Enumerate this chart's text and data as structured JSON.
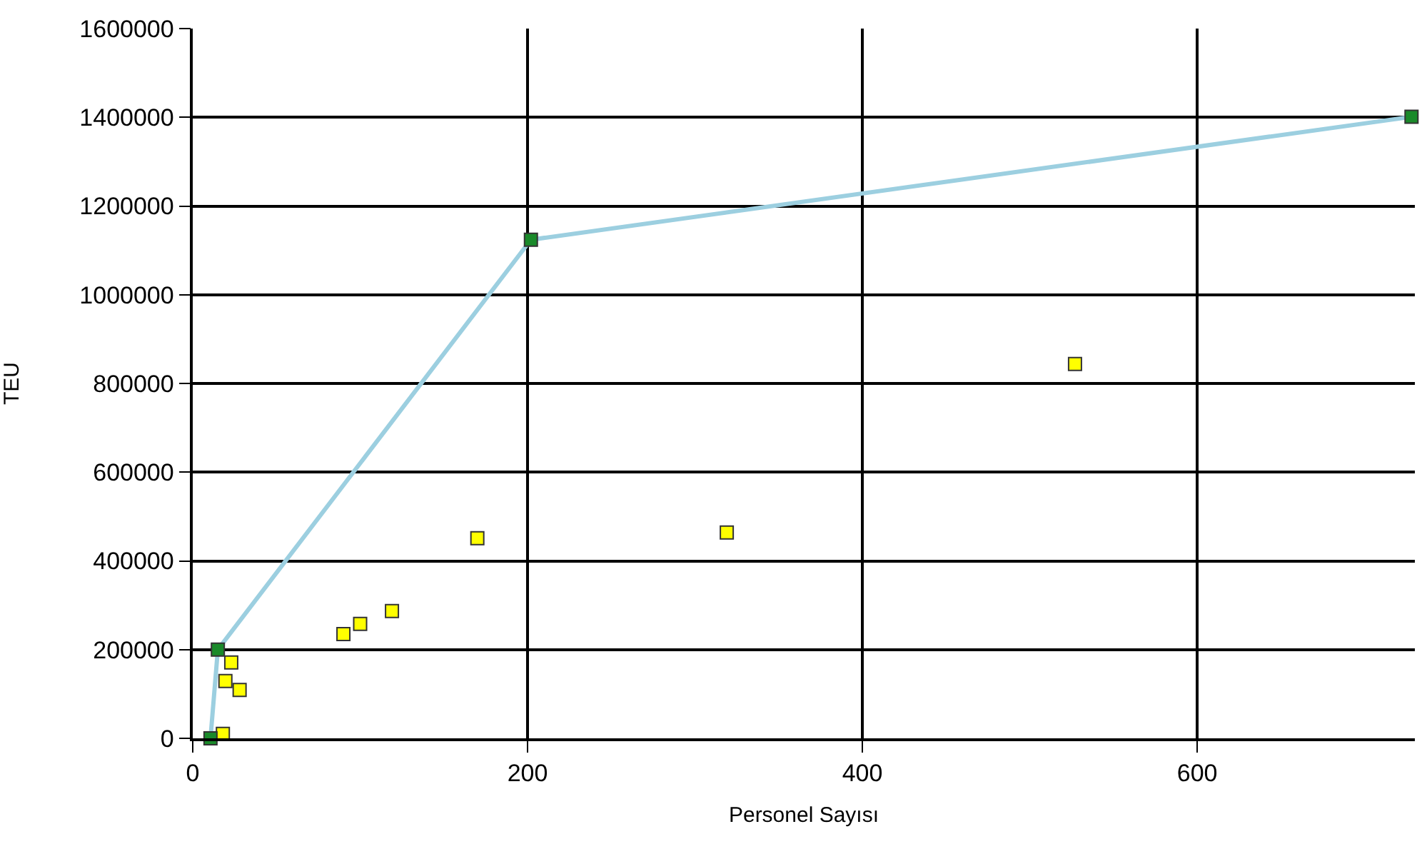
{
  "chart_data": {
    "type": "scatter",
    "xlabel": "Personel Sayısı",
    "ylabel": "TEU",
    "xlim": [
      0,
      730
    ],
    "xticks": [
      0,
      200,
      400,
      600
    ],
    "ylim": [
      0,
      1600000
    ],
    "yticks": [
      0,
      200000,
      400000,
      600000,
      800000,
      1000000,
      1200000,
      1400000,
      1600000
    ],
    "grid": true,
    "marker": "square",
    "series": [
      {
        "color": "#ffff00",
        "x": [
          23,
          19.5,
          28,
          18,
          90,
          100,
          119,
          170,
          319,
          527
        ],
        "values": [
          171000,
          129000,
          109000,
          10000,
          235000,
          258000,
          287000,
          451000,
          464000,
          844000
        ]
      },
      {
        "type": "line",
        "color": "#9ccfe0",
        "colors": [
          "#1a8a2a",
          "#1a8a2a",
          "#1a8a2a",
          "#1a8a2a"
        ],
        "x": [
          10.6,
          15,
          202,
          728
        ],
        "values": [
          0,
          200000,
          1124000,
          1401000
        ]
      }
    ]
  }
}
